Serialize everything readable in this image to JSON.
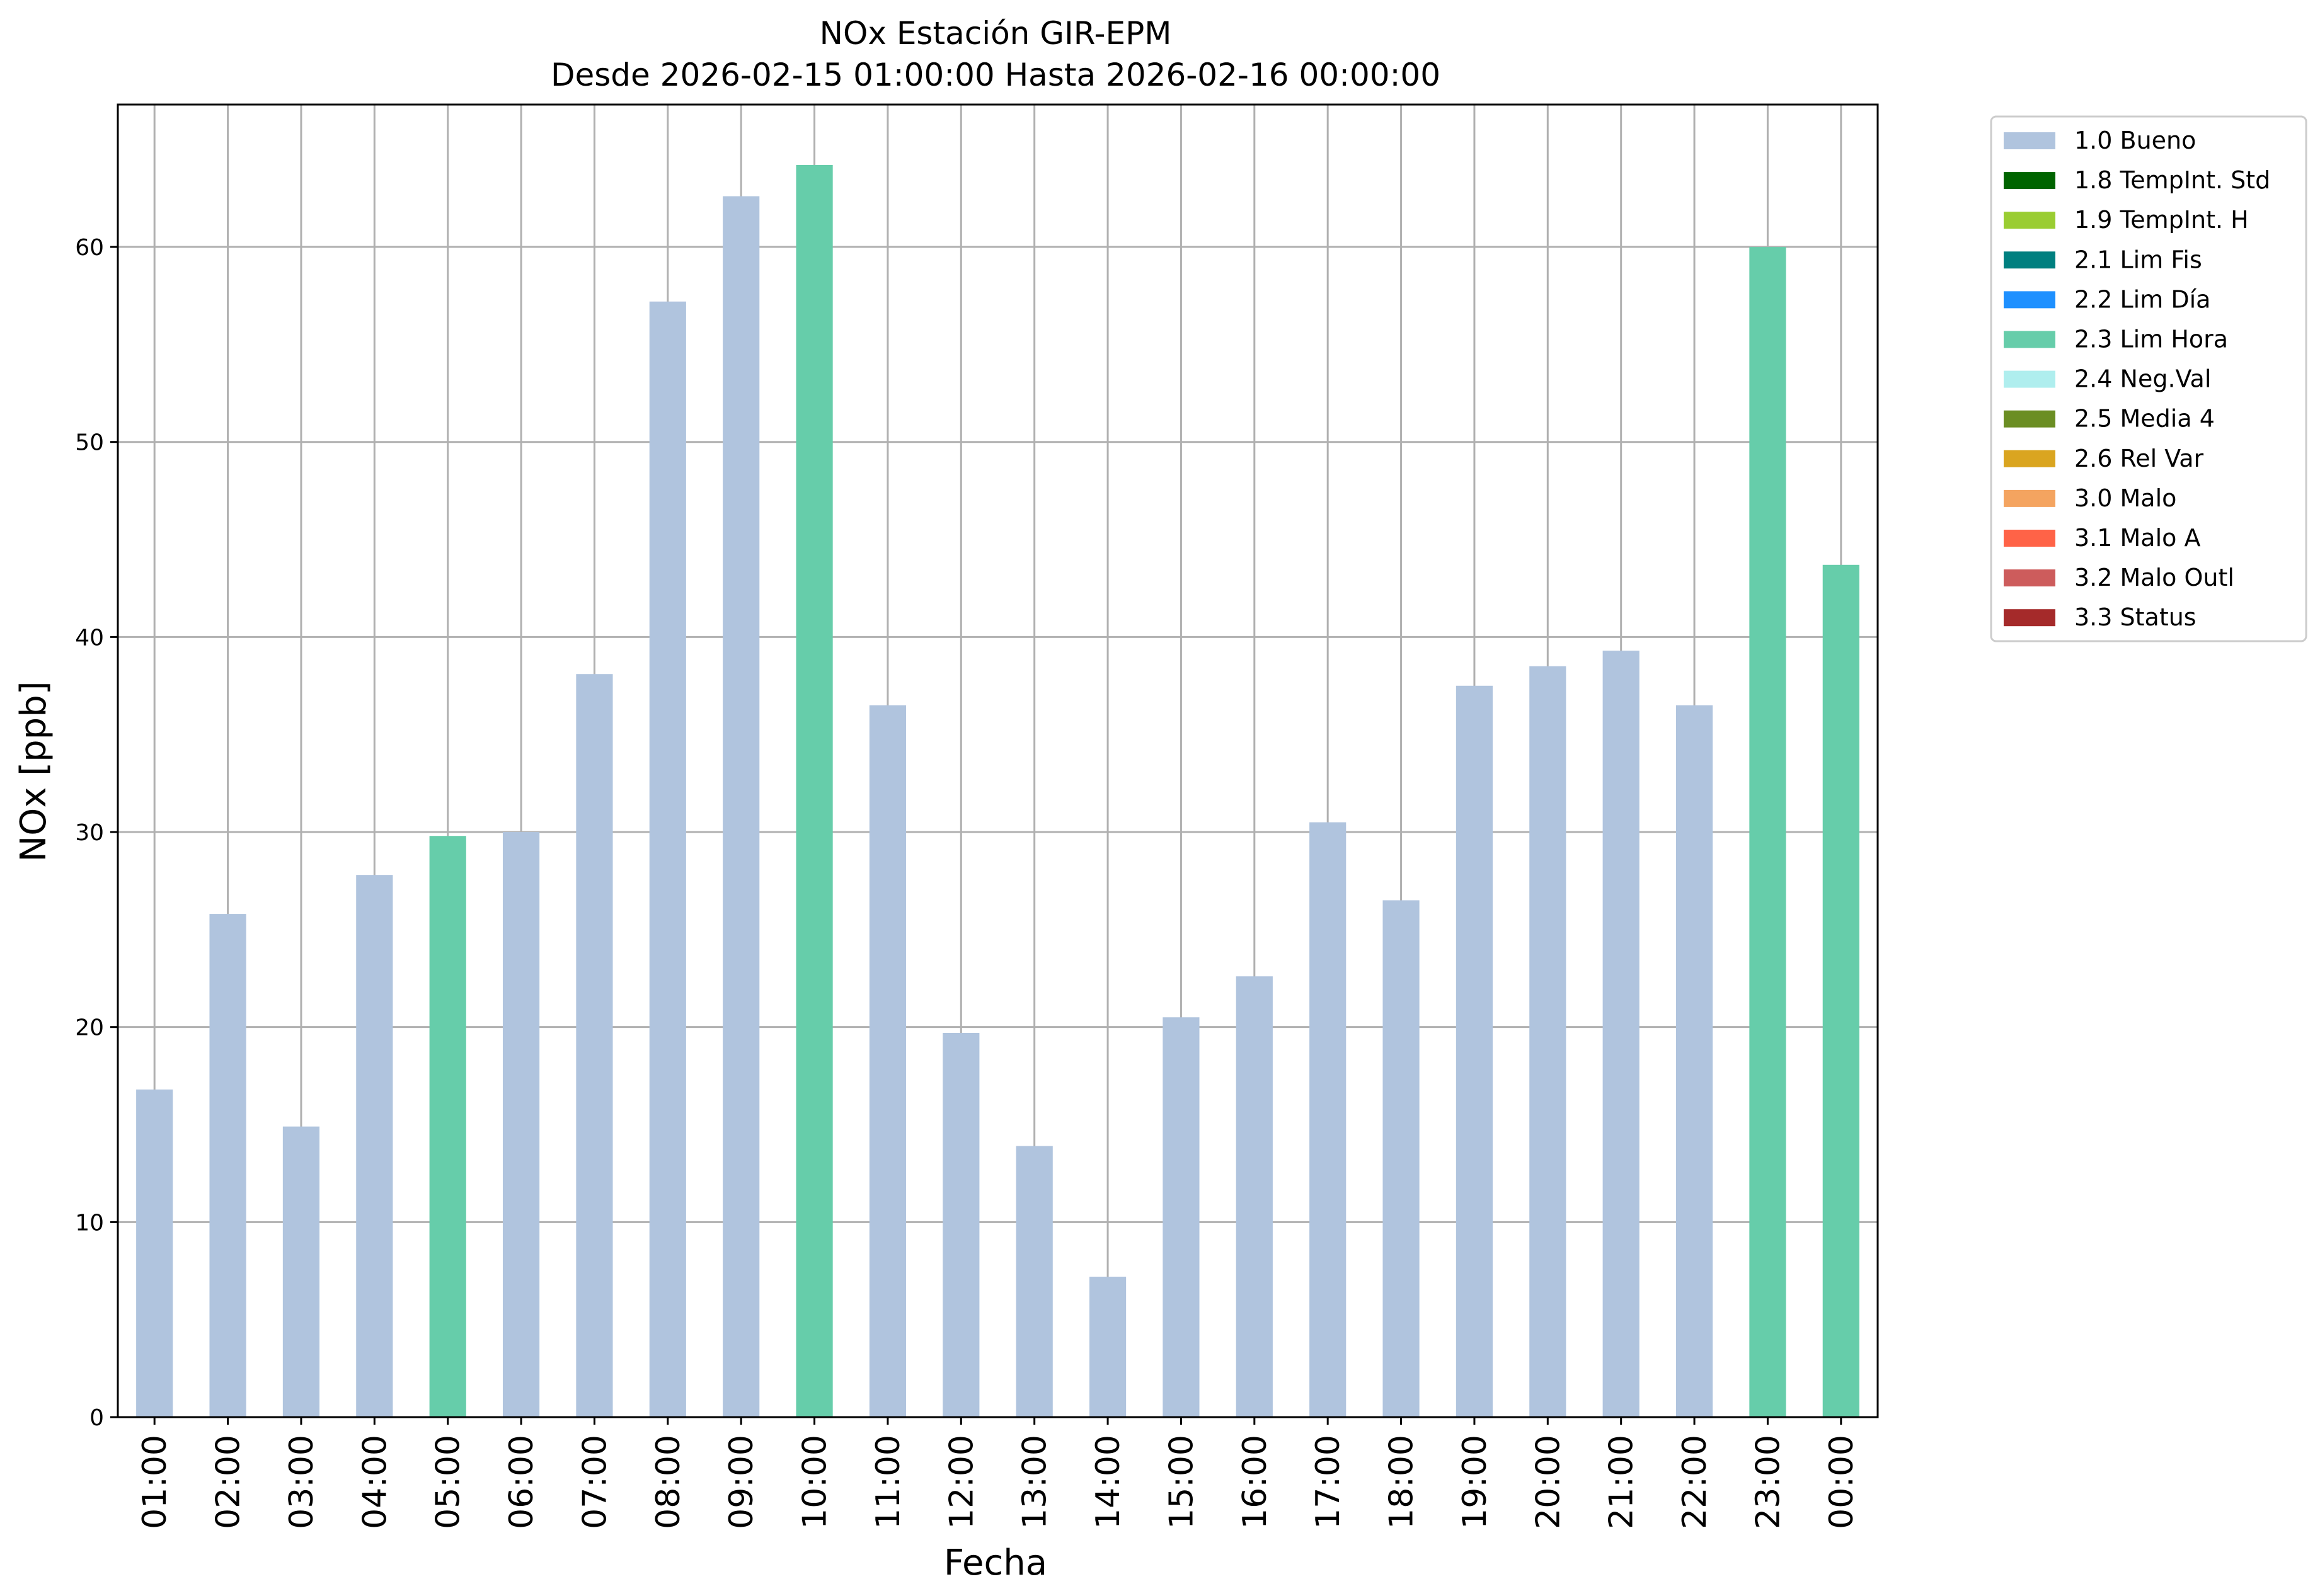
{
  "chart_data": {
    "type": "bar",
    "title": "NOx Estación GIR-EPM",
    "subtitle": "Desde 2026-02-15 01:00:00 Hasta 2026-02-16 00:00:00",
    "xlabel": "Fecha",
    "ylabel": "NOx [ppb]",
    "ylim": [
      0,
      67.3
    ],
    "yticks": [
      0,
      10,
      20,
      30,
      40,
      50,
      60
    ],
    "grid": true,
    "legend_position": "outside-top-right",
    "categories": [
      "01:00",
      "02:00",
      "03:00",
      "04:00",
      "05:00",
      "06:00",
      "07:00",
      "08:00",
      "09:00",
      "10:00",
      "11:00",
      "12:00",
      "13:00",
      "14:00",
      "15:00",
      "16:00",
      "17:00",
      "18:00",
      "19:00",
      "20:00",
      "21:00",
      "22:00",
      "23:00",
      "00:00"
    ],
    "values": [
      16.8,
      25.8,
      14.9,
      27.8,
      29.8,
      30.0,
      38.1,
      57.2,
      62.6,
      64.2,
      36.5,
      19.7,
      13.9,
      7.2,
      20.5,
      22.6,
      30.5,
      26.5,
      37.5,
      38.5,
      39.3,
      36.5,
      60.0,
      43.7
    ],
    "flags": [
      "1.0 Bueno",
      "1.0 Bueno",
      "1.0 Bueno",
      "1.0 Bueno",
      "2.3 Lim Hora",
      "1.0 Bueno",
      "1.0 Bueno",
      "1.0 Bueno",
      "1.0 Bueno",
      "2.3 Lim Hora",
      "1.0 Bueno",
      "1.0 Bueno",
      "1.0 Bueno",
      "1.0 Bueno",
      "1.0 Bueno",
      "1.0 Bueno",
      "1.0 Bueno",
      "1.0 Bueno",
      "1.0 Bueno",
      "1.0 Bueno",
      "1.0 Bueno",
      "1.0 Bueno",
      "2.3 Lim Hora",
      "2.3 Lim Hora"
    ],
    "legend": [
      {
        "label": "1.0 Bueno",
        "color": "#b0c4de"
      },
      {
        "label": "1.8 TempInt. Std",
        "color": "#006400"
      },
      {
        "label": "1.9 TempInt. H",
        "color": "#9acd32"
      },
      {
        "label": "2.1 Lim Fis",
        "color": "#008080"
      },
      {
        "label": "2.2 Lim Día",
        "color": "#1e90ff"
      },
      {
        "label": "2.3 Lim Hora",
        "color": "#66cdaa"
      },
      {
        "label": "2.4 Neg.Val",
        "color": "#afeeee"
      },
      {
        "label": "2.5 Media 4",
        "color": "#6b8e23"
      },
      {
        "label": "2.6 Rel Var",
        "color": "#daa520"
      },
      {
        "label": "3.0 Malo",
        "color": "#f4a460"
      },
      {
        "label": "3.1 Malo A",
        "color": "#ff6347"
      },
      {
        "label": "3.2 Malo Outl",
        "color": "#cd5c5c"
      },
      {
        "label": "3.3 Status",
        "color": "#a52a2a"
      }
    ]
  }
}
